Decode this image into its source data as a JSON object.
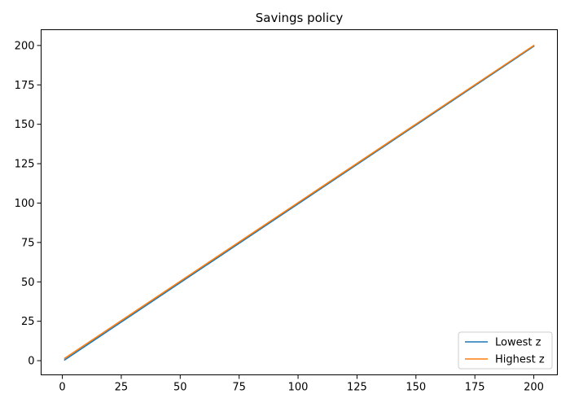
{
  "chart_data": {
    "type": "line",
    "title": "Savings policy",
    "xlabel": "",
    "ylabel": "",
    "xlim": [
      -9,
      210
    ],
    "ylim": [
      -9,
      210
    ],
    "xticks": [
      0,
      25,
      50,
      75,
      100,
      125,
      150,
      175,
      200
    ],
    "yticks": [
      0,
      25,
      50,
      75,
      100,
      125,
      150,
      175,
      200
    ],
    "grid": false,
    "legend_position": "lower-right",
    "series": [
      {
        "name": "Lowest z",
        "color": "#1f77b4",
        "x": [
          1,
          200
        ],
        "y": [
          0.5,
          199.5
        ]
      },
      {
        "name": "Highest z",
        "color": "#ff7f0e",
        "x": [
          1,
          200
        ],
        "y": [
          1.5,
          200
        ]
      }
    ]
  }
}
